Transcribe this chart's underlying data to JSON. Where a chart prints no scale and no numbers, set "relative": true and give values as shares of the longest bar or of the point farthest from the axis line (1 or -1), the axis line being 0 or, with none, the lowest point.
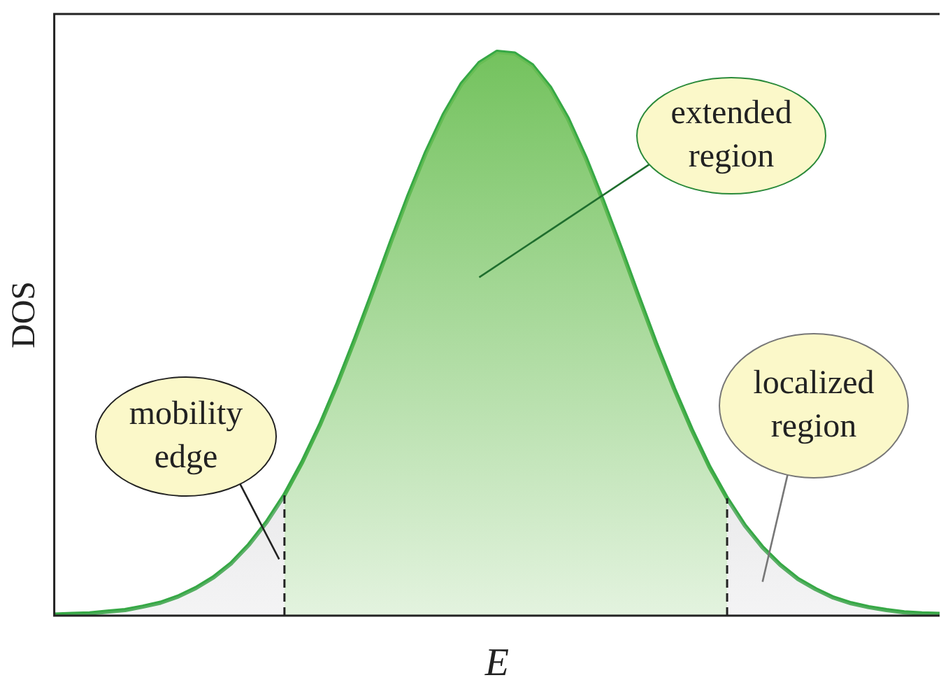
{
  "chart_data": {
    "type": "area",
    "relative": true,
    "xlabel": "E",
    "ylabel": "DOS",
    "legend": false,
    "grid": false,
    "marker": "none",
    "categories": [
      null,
      null,
      null,
      null,
      null,
      null,
      null,
      null,
      null,
      null,
      null,
      null,
      null,
      null,
      null,
      null,
      null,
      null,
      null,
      null,
      null,
      null,
      null,
      null,
      null,
      null,
      null,
      null,
      null,
      null,
      null,
      null,
      null,
      null,
      null,
      null,
      null,
      null,
      null,
      null,
      null,
      null,
      null,
      null,
      null,
      null,
      null,
      null,
      null,
      null,
      null
    ],
    "series": [
      {
        "color": "#c4c4c8",
        "values": [
          0.002,
          0.003,
          0.004,
          0.007,
          0.01,
          0.016,
          0.023,
          0.034,
          0.049,
          0.068,
          0.093,
          0.126,
          0.166,
          0.214,
          null,
          null,
          null,
          null,
          null,
          null,
          null,
          null,
          null,
          null,
          null,
          null,
          null,
          null,
          null,
          null,
          null,
          null,
          null,
          null,
          null,
          null,
          null,
          null,
          null,
          null,
          null,
          null,
          null,
          null,
          null,
          null,
          null,
          null,
          null,
          null,
          null
        ]
      },
      {
        "color": "#6cbf55",
        "values": [
          null,
          null,
          null,
          null,
          null,
          null,
          null,
          null,
          null,
          null,
          null,
          null,
          null,
          0.214,
          0.272,
          0.338,
          0.412,
          0.492,
          0.576,
          0.662,
          0.745,
          0.822,
          0.889,
          0.943,
          0.98,
          1,
          0.997,
          0.976,
          0.937,
          0.882,
          0.813,
          0.735,
          0.652,
          0.566,
          0.482,
          0.403,
          0.33,
          0.264,
          0.208,
          null,
          null,
          null,
          null,
          null,
          null,
          null,
          null,
          null,
          null,
          null,
          null
        ]
      },
      {
        "color": "#c4c4c8",
        "values": [
          null,
          null,
          null,
          null,
          null,
          null,
          null,
          null,
          null,
          null,
          null,
          null,
          null,
          null,
          null,
          null,
          null,
          null,
          null,
          null,
          null,
          null,
          null,
          null,
          null,
          null,
          null,
          null,
          null,
          null,
          null,
          null,
          null,
          null,
          null,
          null,
          null,
          null,
          0.208,
          0.16,
          0.121,
          0.09,
          0.065,
          0.047,
          0.032,
          0.022,
          0.015,
          0.01,
          0.006,
          0.004,
          0.003
        ]
      },
      {
        "type": "line",
        "color": "#36a845",
        "values": [
          0.002,
          0.003,
          0.004,
          0.007,
          0.01,
          0.016,
          0.023,
          0.034,
          0.049,
          0.068,
          0.093,
          0.126,
          0.166,
          0.214,
          0.272,
          0.338,
          0.412,
          0.492,
          0.576,
          0.662,
          0.745,
          0.822,
          0.889,
          0.943,
          0.98,
          1,
          0.997,
          0.976,
          0.937,
          0.882,
          0.813,
          0.735,
          0.652,
          0.566,
          0.482,
          0.403,
          0.33,
          0.264,
          0.208,
          0.16,
          0.121,
          0.09,
          0.065,
          0.047,
          0.032,
          0.022,
          0.015,
          0.01,
          0.006,
          0.004,
          0.003
        ]
      }
    ],
    "annotations": [
      "mobility edge",
      "extended region",
      "localized region"
    ]
  }
}
